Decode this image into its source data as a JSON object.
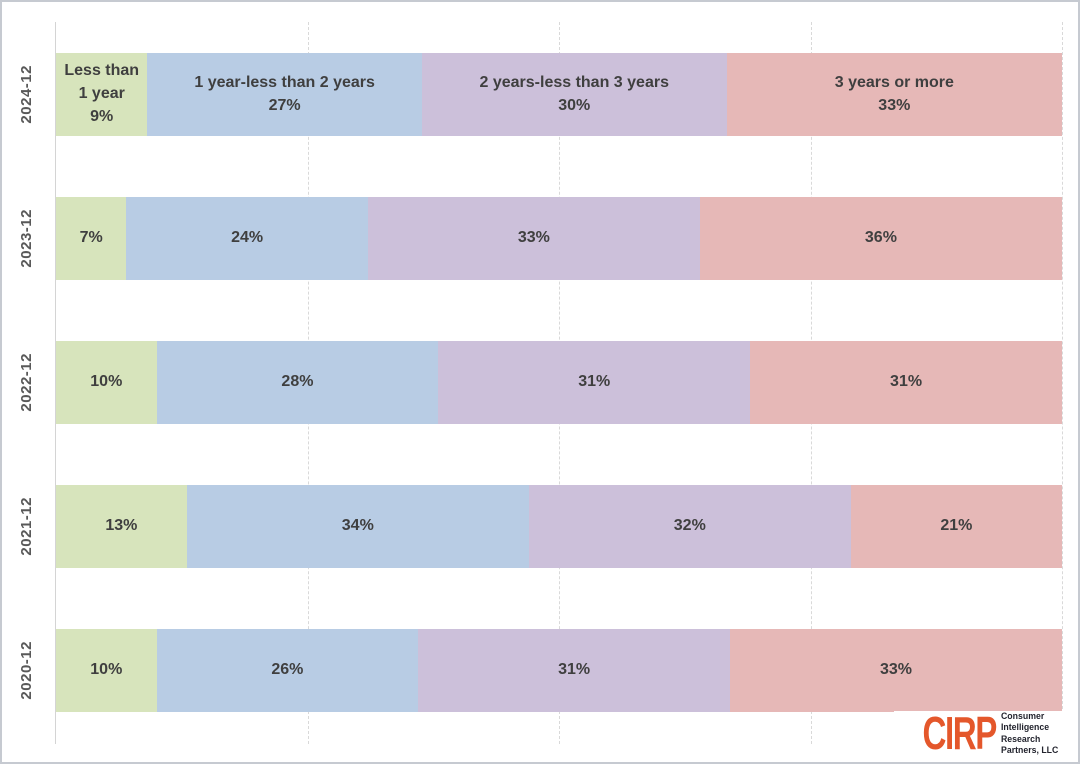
{
  "chart_data": {
    "type": "bar",
    "orientation": "horizontal_stacked",
    "title": "",
    "xlabel": "",
    "ylabel": "",
    "xlim": [
      0,
      100
    ],
    "value_format": "percent",
    "grid": "vertical dashed at 25/50/75/100",
    "gridlines_pct": [
      25,
      50,
      75,
      100
    ],
    "legend_position": "inline labels inside first bar row",
    "categories": [
      "2024-12",
      "2023-12",
      "2022-12",
      "2021-12",
      "2020-12"
    ],
    "series": [
      {
        "name": "Less than 1 year",
        "color": "#D7E4BC",
        "values": [
          9,
          7,
          10,
          13,
          10
        ]
      },
      {
        "name": "1 year-less than 2 years",
        "color": "#B8CCE4",
        "values": [
          27,
          24,
          28,
          34,
          26
        ]
      },
      {
        "name": "2 years-less than 3 years",
        "color": "#CCC0DA",
        "values": [
          30,
          33,
          31,
          32,
          31
        ]
      },
      {
        "name": "3 years or more",
        "color": "#E6B8B7",
        "values": [
          33,
          36,
          31,
          21,
          33
        ]
      }
    ],
    "bar_labels": [
      [
        [
          "Less than",
          "1 year",
          "9%"
        ],
        [
          "1 year-less than 2 years",
          "27%"
        ],
        [
          "2 years-less than 3 years",
          "30%"
        ],
        [
          "3 years or more",
          "33%"
        ]
      ],
      [
        [
          "7%"
        ],
        [
          "24%"
        ],
        [
          "33%"
        ],
        [
          "36%"
        ]
      ],
      [
        [
          "10%"
        ],
        [
          "28%"
        ],
        [
          "31%"
        ],
        [
          "31%"
        ]
      ],
      [
        [
          "13%"
        ],
        [
          "34%"
        ],
        [
          "32%"
        ],
        [
          "21%"
        ]
      ],
      [
        [
          "10%"
        ],
        [
          "26%"
        ],
        [
          "31%"
        ],
        [
          "33%"
        ]
      ]
    ]
  },
  "logo": {
    "mark": "CIRP",
    "mark_color": "#E4572B",
    "text_color": "#23242E",
    "lines": [
      "Consumer",
      "Intelligence",
      "Research",
      "Partners, LLC"
    ]
  },
  "colors": {
    "background": "#FFFFFF",
    "border": "#C6CAD1",
    "gridline": "#D9D9D9",
    "axis_line": "#D4D4D4",
    "segment_label_text": "#3F3F3F",
    "category_label_text": "#595959"
  }
}
